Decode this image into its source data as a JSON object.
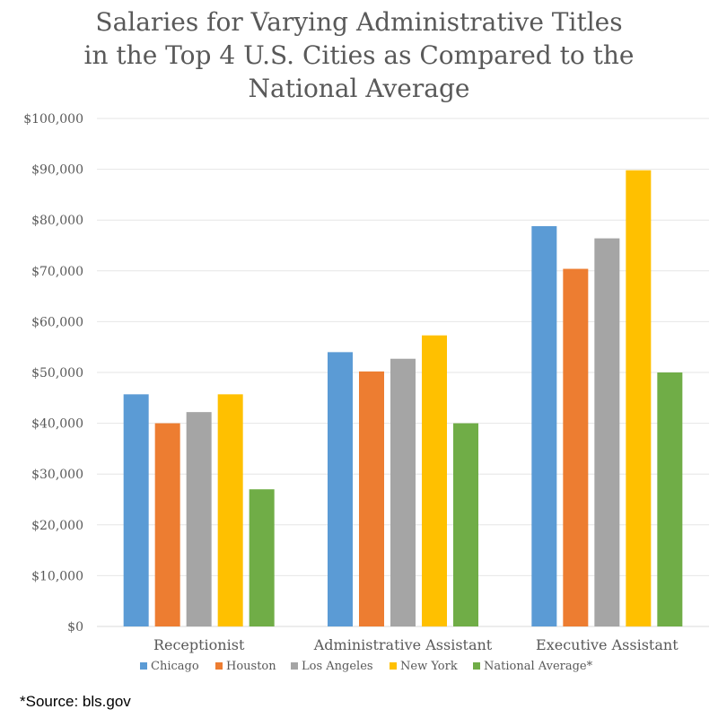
{
  "chart_data": {
    "type": "bar",
    "title_lines": [
      "Salaries for Varying Administrative Titles",
      "in the Top 4 U.S. Cities as Compared to the",
      "National Average"
    ],
    "xlabel": "",
    "ylabel": "",
    "ylim": [
      0,
      100000
    ],
    "y_ticks": [
      {
        "value": 0,
        "label": "$0"
      },
      {
        "value": 10000,
        "label": "$10,000"
      },
      {
        "value": 20000,
        "label": "$20,000"
      },
      {
        "value": 30000,
        "label": "$30,000"
      },
      {
        "value": 40000,
        "label": "$40,000"
      },
      {
        "value": 50000,
        "label": "$50,000"
      },
      {
        "value": 60000,
        "label": "$60,000"
      },
      {
        "value": 70000,
        "label": "$70,000"
      },
      {
        "value": 80000,
        "label": "$80,000"
      },
      {
        "value": 90000,
        "label": "$90,000"
      },
      {
        "value": 100000,
        "label": "$100,000"
      }
    ],
    "grid": true,
    "legend_position": "bottom",
    "categories": [
      "Receptionist",
      "Administrative Assistant",
      "Executive Assistant"
    ],
    "series": [
      {
        "name": "Chicago",
        "color": "#5B9BD5",
        "values": [
          45700,
          54000,
          78800
        ]
      },
      {
        "name": "Houston",
        "color": "#ED7D31",
        "values": [
          40000,
          50200,
          70400
        ]
      },
      {
        "name": "Los Angeles",
        "color": "#A5A5A5",
        "values": [
          42200,
          52700,
          76400
        ]
      },
      {
        "name": "New York",
        "color": "#FFC000",
        "values": [
          45700,
          57300,
          89800
        ]
      },
      {
        "name": "National Average*",
        "color": "#70AD47",
        "values": [
          27000,
          40000,
          50000
        ]
      }
    ]
  },
  "footnote": "*Source: bls.gov"
}
